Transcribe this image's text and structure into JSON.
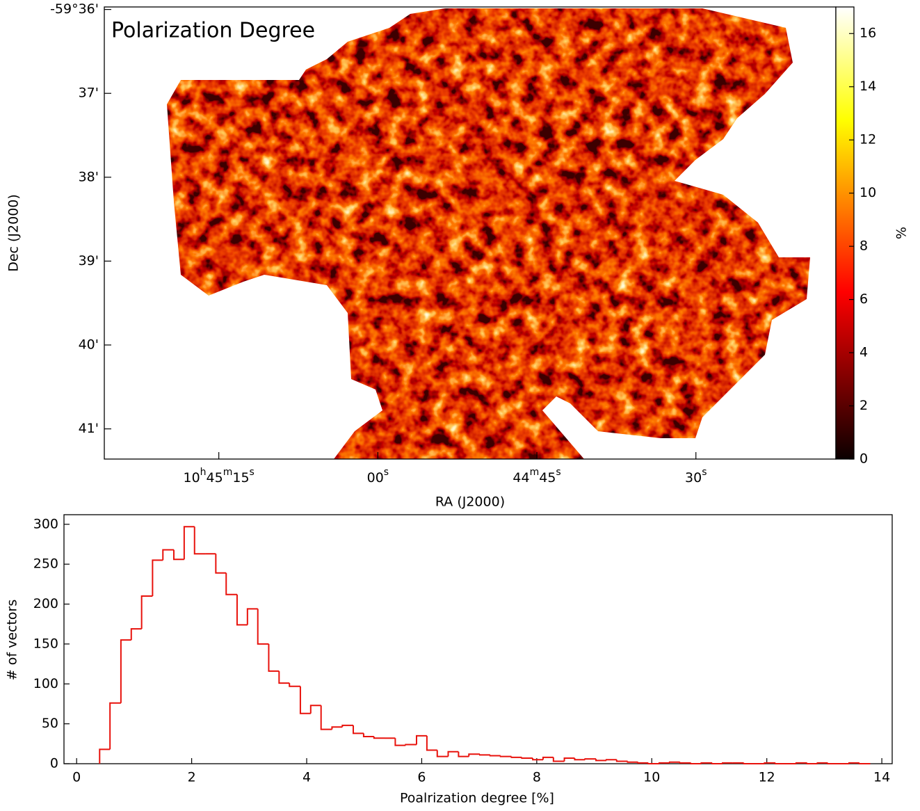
{
  "chart_data": [
    {
      "type": "image",
      "title": "Polarization Degree",
      "xlabel": "RA (J2000)",
      "ylabel": "Dec (J2000)",
      "xlim": [
        38725.8,
        38656.8
      ],
      "xticks": [
        {
          "value": 38715,
          "label": "10h45m15s"
        },
        {
          "value": 38700,
          "label": "00s"
        },
        {
          "value": 38685,
          "label": "44m45s"
        },
        {
          "value": 38670,
          "label": "30s"
        }
      ],
      "ylim": [
        -3581.36,
        -3575.97
      ],
      "yticks": [
        {
          "value": -3576,
          "label": "-59°36'"
        },
        {
          "value": -3577,
          "label": "37'"
        },
        {
          "value": -3578,
          "label": "38'"
        },
        {
          "value": -3579,
          "label": "39'"
        },
        {
          "value": -3580,
          "label": "40'"
        },
        {
          "value": -3581,
          "label": "41'"
        }
      ],
      "colorbar_label": "%",
      "colorbar_lim": [
        0,
        17
      ],
      "colorbar_ticks": [
        0,
        2,
        4,
        6,
        8,
        10,
        12,
        14,
        16
      ],
      "colormap": "hot"
    },
    {
      "type": "histogram",
      "xlabel": "Poalrization degree [%]",
      "ylabel": "# of vectors",
      "color": "#e8120c",
      "bins": [
        0.4,
        0.58,
        0.77,
        0.95,
        1.13,
        1.32,
        1.5,
        1.69,
        1.87,
        2.05,
        2.24,
        2.42,
        2.6,
        2.79,
        2.97,
        3.15,
        3.34,
        3.52,
        3.7,
        3.89,
        4.07,
        4.25,
        4.44,
        4.62,
        4.81,
        4.99,
        5.17,
        5.36,
        5.54,
        5.72,
        5.91,
        6.09,
        6.27,
        6.46,
        6.64,
        6.82,
        7.01,
        7.19,
        7.37,
        7.56,
        7.74,
        7.93,
        8.11,
        8.29,
        8.48,
        8.66,
        8.84,
        9.03,
        9.21,
        9.39,
        9.58,
        9.76,
        9.94,
        10.13,
        10.31,
        10.49,
        10.68,
        10.86,
        11.05,
        11.23,
        11.41,
        11.6,
        11.78,
        11.96,
        12.15,
        12.33,
        12.51,
        12.7,
        12.88,
        13.06,
        13.25,
        13.43,
        13.61,
        13.8
      ],
      "values": [
        18,
        76,
        155,
        169,
        210,
        255,
        268,
        256,
        297,
        263,
        263,
        239,
        212,
        174,
        194,
        150,
        116,
        101,
        97,
        63,
        73,
        43,
        46,
        48,
        38,
        34,
        32,
        32,
        23,
        24,
        35,
        17,
        9,
        15,
        9,
        12,
        11,
        10,
        9,
        8,
        7,
        5,
        8,
        3,
        7,
        5,
        6,
        4,
        5,
        3,
        2,
        1,
        0,
        1,
        2,
        1,
        0,
        1,
        0,
        1,
        1,
        0,
        0,
        1,
        0,
        0,
        1,
        0,
        1,
        0,
        0,
        1,
        0
      ],
      "xlim": [
        -0.22,
        14.18
      ],
      "xticks": [
        0,
        2,
        4,
        6,
        8,
        10,
        12,
        14
      ],
      "ylim": [
        0,
        312
      ],
      "yticks": [
        0,
        50,
        100,
        150,
        200,
        250,
        300
      ]
    }
  ]
}
